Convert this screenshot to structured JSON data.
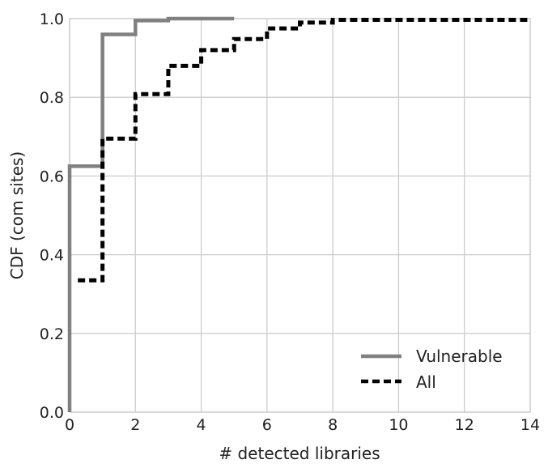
{
  "chart_data": {
    "type": "line",
    "xlabel": "# detected libraries",
    "ylabel": "CDF (com sites)",
    "xlim": [
      0,
      14
    ],
    "ylim": [
      0,
      1.0
    ],
    "x_ticks": [
      "0",
      "2",
      "4",
      "6",
      "8",
      "10",
      "12",
      "14"
    ],
    "y_ticks": [
      "0.0",
      "0.2",
      "0.4",
      "0.6",
      "0.8",
      "1.0"
    ],
    "grid": true,
    "legend_position": "lower-right",
    "series": [
      {
        "name": "Vulnerable",
        "color": "#808080",
        "style": "solid-step",
        "x": [
          0,
          0,
          1,
          2,
          3,
          5
        ],
        "y": [
          0,
          0.625,
          0.96,
          0.995,
          1.0,
          1.0
        ]
      },
      {
        "name": "All",
        "color": "#000000",
        "style": "dashed-step",
        "x": [
          0.25,
          1,
          2,
          3,
          4,
          5,
          6,
          7,
          8,
          14
        ],
        "y": [
          0.335,
          0.695,
          0.808,
          0.88,
          0.92,
          0.948,
          0.975,
          0.99,
          0.997,
          1.0
        ]
      }
    ]
  }
}
